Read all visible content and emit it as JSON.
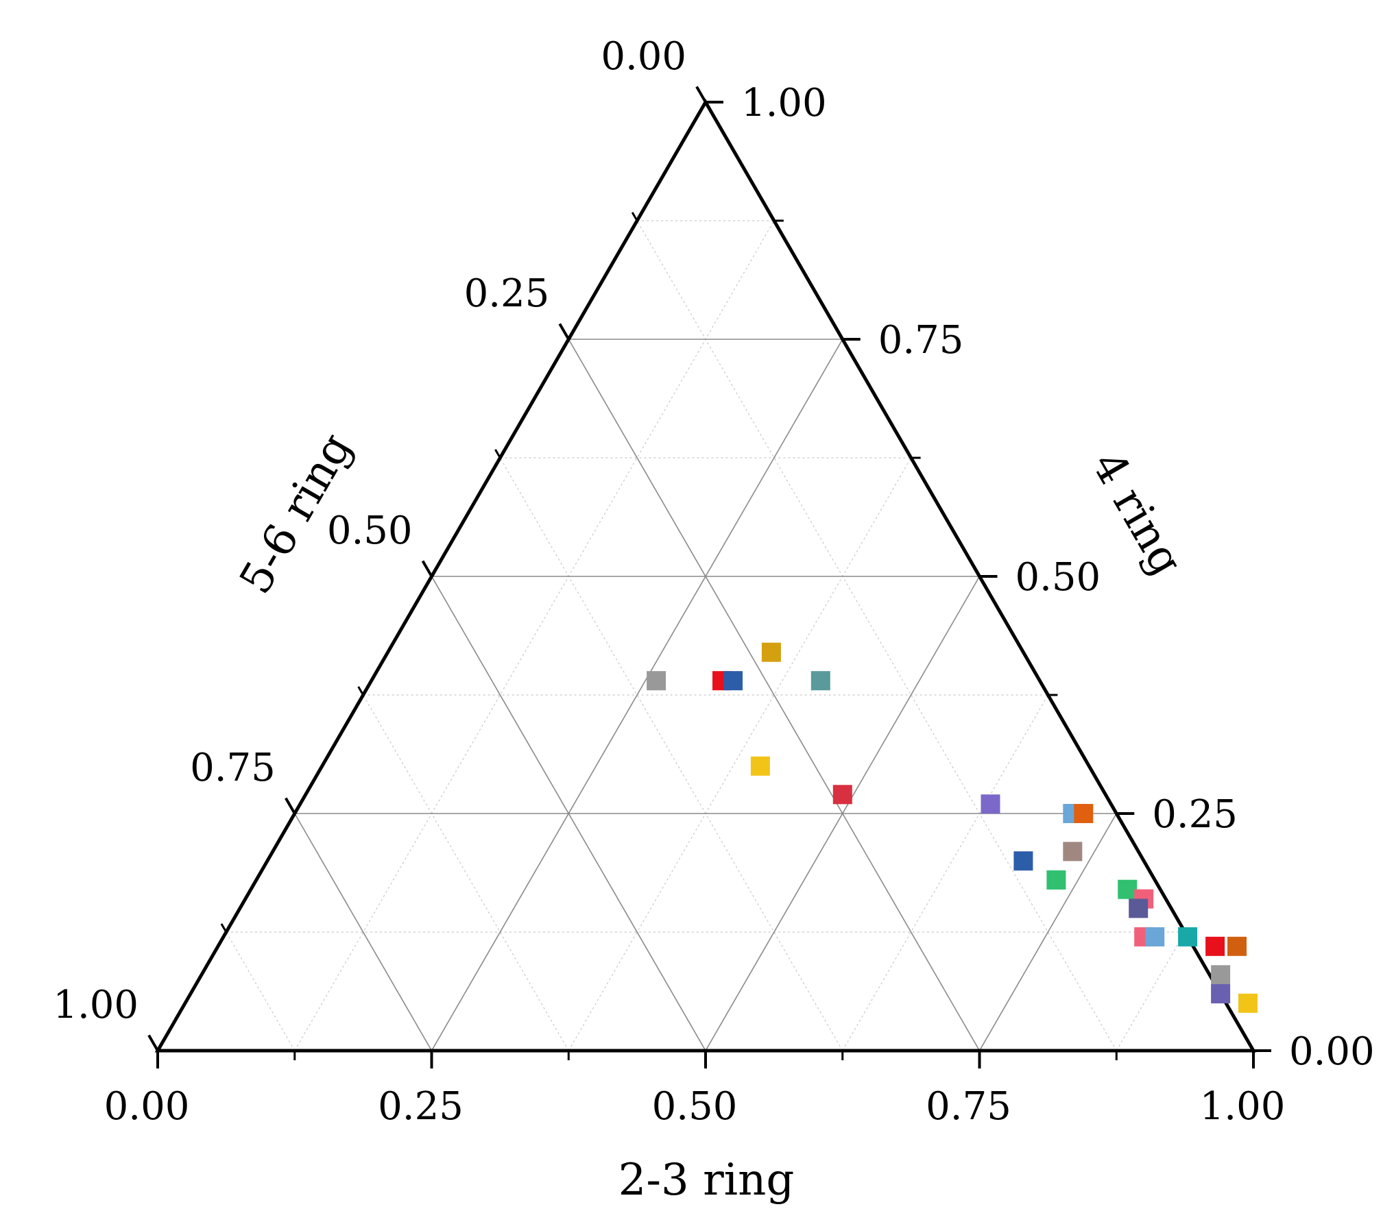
{
  "chart_data": {
    "type": "ternary-scatter",
    "axes": {
      "bottom": {
        "label": "2-3 ring",
        "ticks": [
          "0.00",
          "0.25",
          "0.50",
          "0.75",
          "1.00"
        ]
      },
      "right": {
        "label": "4 ring",
        "ticks": [
          "0.00",
          "0.25",
          "0.50",
          "0.75",
          "1.00"
        ]
      },
      "left": {
        "label": "5-6 ring",
        "ticks": [
          "0.00",
          "0.25",
          "0.50",
          "0.75",
          "1.00"
        ]
      }
    },
    "grid": true,
    "marker": "square",
    "points": [
      {
        "a": 0.26,
        "b": 0.39,
        "c": 0.35,
        "color": "#999999"
      },
      {
        "a": 0.32,
        "b": 0.39,
        "c": 0.29,
        "color": "#e8101a"
      },
      {
        "a": 0.33,
        "b": 0.39,
        "c": 0.28,
        "color": "#2c5da8"
      },
      {
        "a": 0.35,
        "b": 0.42,
        "c": 0.23,
        "color": "#d4a010"
      },
      {
        "a": 0.41,
        "b": 0.39,
        "c": 0.2,
        "color": "#5a9a9a"
      },
      {
        "a": 0.4,
        "b": 0.3,
        "c": 0.3,
        "color": "#f2c418"
      },
      {
        "a": 0.49,
        "b": 0.27,
        "c": 0.24,
        "color": "#d83040"
      },
      {
        "a": 0.63,
        "b": 0.26,
        "c": 0.11,
        "color": "#7b68c8"
      },
      {
        "a": 0.71,
        "b": 0.25,
        "c": 0.04,
        "color": "#6aa6d8"
      },
      {
        "a": 0.72,
        "b": 0.25,
        "c": 0.03,
        "color": "#e06010"
      },
      {
        "a": 0.69,
        "b": 0.2,
        "c": 0.11,
        "color": "#2c5da8"
      },
      {
        "a": 0.73,
        "b": 0.21,
        "c": 0.06,
        "color": "#a08880"
      },
      {
        "a": 0.73,
        "b": 0.18,
        "c": 0.09,
        "color": "#30c070"
      },
      {
        "a": 0.8,
        "b": 0.17,
        "c": 0.03,
        "color": "#30c070"
      },
      {
        "a": 0.82,
        "b": 0.16,
        "c": 0.02,
        "color": "#f0607a"
      },
      {
        "a": 0.82,
        "b": 0.15,
        "c": 0.03,
        "color": "#5a5a98"
      },
      {
        "a": 0.84,
        "b": 0.12,
        "c": 0.04,
        "color": "#f0607a"
      },
      {
        "a": 0.85,
        "b": 0.12,
        "c": 0.03,
        "color": "#6aa6d8"
      },
      {
        "a": 0.88,
        "b": 0.12,
        "c": 0.0,
        "color": "#18a8a8"
      },
      {
        "a": 0.91,
        "b": 0.11,
        "c": -0.02,
        "color": "#e8101a"
      },
      {
        "a": 0.93,
        "b": 0.11,
        "c": -0.04,
        "color": "#d06010"
      },
      {
        "a": 0.93,
        "b": 0.08,
        "c": -0.01,
        "color": "#999999"
      },
      {
        "a": 0.94,
        "b": 0.06,
        "c": 0.0,
        "color": "#6a60b0"
      },
      {
        "a": 0.97,
        "b": 0.05,
        "c": -0.02,
        "color": "#f2c418"
      }
    ]
  }
}
